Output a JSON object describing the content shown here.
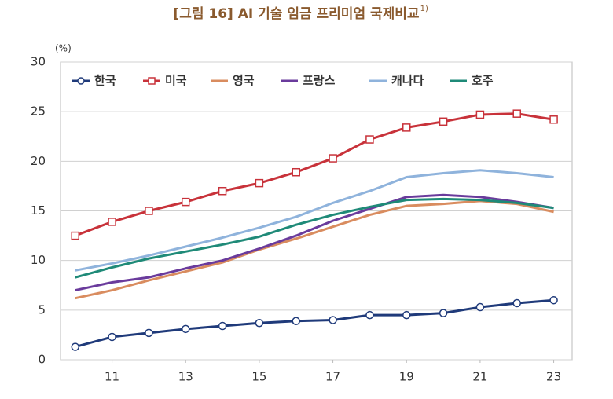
{
  "chart_data": {
    "type": "line",
    "title": "[그림 16] AI 기술 임금 프리미엄 국제비교",
    "title_note": "1)",
    "ylabel": "(%)",
    "x": [
      10,
      11,
      12,
      13,
      14,
      15,
      16,
      17,
      18,
      19,
      20,
      21,
      22,
      23
    ],
    "xlim": [
      9.6,
      23.5
    ],
    "xticks": [
      11,
      13,
      15,
      17,
      19,
      21,
      23
    ],
    "ylim": [
      0,
      30
    ],
    "yticks": [
      0,
      5,
      10,
      15,
      20,
      25,
      30
    ],
    "grid": true,
    "legend": "upper left",
    "series": [
      {
        "name": "한국",
        "color": "#1f3a7a",
        "marker": "circle",
        "values": [
          1.3,
          2.3,
          2.7,
          3.1,
          3.4,
          3.7,
          3.9,
          4.0,
          4.5,
          4.5,
          4.7,
          5.3,
          5.7,
          6.0
        ]
      },
      {
        "name": "미국",
        "color": "#c8323a",
        "marker": "square",
        "values": [
          12.5,
          13.9,
          15.0,
          15.9,
          17.0,
          17.8,
          18.9,
          20.3,
          22.2,
          23.4,
          24.0,
          24.7,
          24.8,
          24.2
        ]
      },
      {
        "name": "영국",
        "color": "#d98c5f",
        "values": [
          6.2,
          7.0,
          8.0,
          8.9,
          9.8,
          11.1,
          12.2,
          13.4,
          14.6,
          15.5,
          15.7,
          16.0,
          15.7,
          14.9
        ]
      },
      {
        "name": "프랑스",
        "color": "#6a3b9c",
        "values": [
          7.0,
          7.8,
          8.3,
          9.2,
          10.0,
          11.2,
          12.5,
          14.0,
          15.2,
          16.4,
          16.6,
          16.4,
          15.9,
          15.3
        ]
      },
      {
        "name": "캐나다",
        "color": "#8fb3dc",
        "values": [
          9.0,
          9.7,
          10.5,
          11.4,
          12.3,
          13.3,
          14.4,
          15.8,
          17.0,
          18.4,
          18.8,
          19.1,
          18.8,
          18.4
        ]
      },
      {
        "name": "호주",
        "color": "#1f8a78",
        "values": [
          8.3,
          9.3,
          10.2,
          10.9,
          11.6,
          12.4,
          13.6,
          14.6,
          15.4,
          16.1,
          16.2,
          16.1,
          15.8,
          15.3
        ]
      }
    ]
  }
}
